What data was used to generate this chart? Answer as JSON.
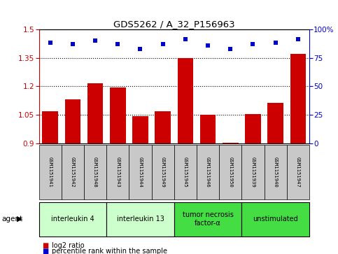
{
  "title": "GDS5262 / A_32_P156963",
  "samples": [
    "GSM1151941",
    "GSM1151942",
    "GSM1151948",
    "GSM1151943",
    "GSM1151944",
    "GSM1151949",
    "GSM1151945",
    "GSM1151946",
    "GSM1151950",
    "GSM1151939",
    "GSM1151940",
    "GSM1151947"
  ],
  "log2_ratio": [
    1.07,
    1.13,
    1.215,
    1.195,
    1.045,
    1.07,
    1.35,
    1.052,
    0.905,
    1.055,
    1.115,
    1.37
  ],
  "percentile": [
    88,
    87,
    90,
    87,
    83,
    87,
    91,
    86,
    83,
    87,
    88,
    91
  ],
  "ylim_left": [
    0.9,
    1.5
  ],
  "ylim_right": [
    0,
    100
  ],
  "yticks_left": [
    0.9,
    1.05,
    1.2,
    1.35,
    1.5
  ],
  "yticks_right": [
    0,
    25,
    50,
    75,
    100
  ],
  "bar_color": "#cc0000",
  "dot_color": "#0000cc",
  "agent_groups": [
    {
      "label": "interleukin 4",
      "start": 0,
      "end": 3,
      "color": "#ccffcc"
    },
    {
      "label": "interleukin 13",
      "start": 3,
      "end": 6,
      "color": "#ccffcc"
    },
    {
      "label": "tumor necrosis\nfactor-α",
      "start": 6,
      "end": 9,
      "color": "#44dd44"
    },
    {
      "label": "unstimulated",
      "start": 9,
      "end": 12,
      "color": "#44dd44"
    }
  ],
  "legend_bar_label": "log2 ratio",
  "legend_dot_label": "percentile rank within the sample",
  "axis_color_left": "#cc0000",
  "axis_color_right": "#0000cc",
  "xlabel_agent": "agent",
  "tick_area_color": "#c8c8c8",
  "plot_bg": "#ffffff"
}
